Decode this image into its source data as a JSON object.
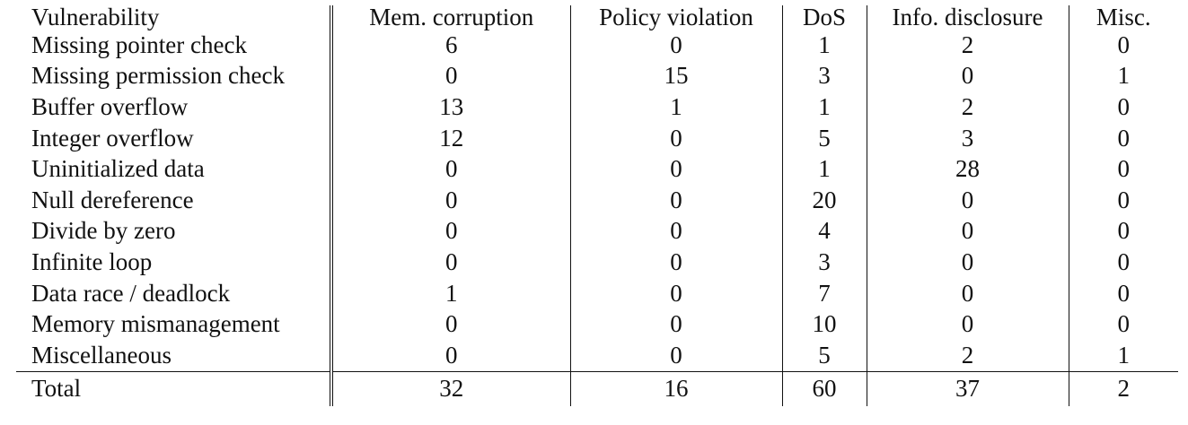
{
  "table": {
    "headers": [
      "Vulnerability",
      "Mem. corruption",
      "Policy violation",
      "DoS",
      "Info. disclosure",
      "Misc."
    ],
    "rows": [
      {
        "name": "Missing pointer check",
        "values": [
          "6",
          "0",
          "1",
          "2",
          "0"
        ]
      },
      {
        "name": "Missing permission check",
        "values": [
          "0",
          "15",
          "3",
          "0",
          "1"
        ]
      },
      {
        "name": "Buffer overflow",
        "values": [
          "13",
          "1",
          "1",
          "2",
          "0"
        ]
      },
      {
        "name": "Integer overflow",
        "values": [
          "12",
          "0",
          "5",
          "3",
          "0"
        ]
      },
      {
        "name": "Uninitialized data",
        "values": [
          "0",
          "0",
          "1",
          "28",
          "0"
        ]
      },
      {
        "name": "Null dereference",
        "values": [
          "0",
          "0",
          "20",
          "0",
          "0"
        ]
      },
      {
        "name": "Divide by zero",
        "values": [
          "0",
          "0",
          "4",
          "0",
          "0"
        ]
      },
      {
        "name": "Infinite loop",
        "values": [
          "0",
          "0",
          "3",
          "0",
          "0"
        ]
      },
      {
        "name": "Data race / deadlock",
        "values": [
          "1",
          "0",
          "7",
          "0",
          "0"
        ]
      },
      {
        "name": "Memory mismanagement",
        "values": [
          "0",
          "0",
          "10",
          "0",
          "0"
        ]
      },
      {
        "name": "Miscellaneous",
        "values": [
          "0",
          "0",
          "5",
          "2",
          "1"
        ]
      }
    ],
    "total": {
      "name": "Total",
      "values": [
        "32",
        "16",
        "60",
        "37",
        "2"
      ]
    }
  }
}
